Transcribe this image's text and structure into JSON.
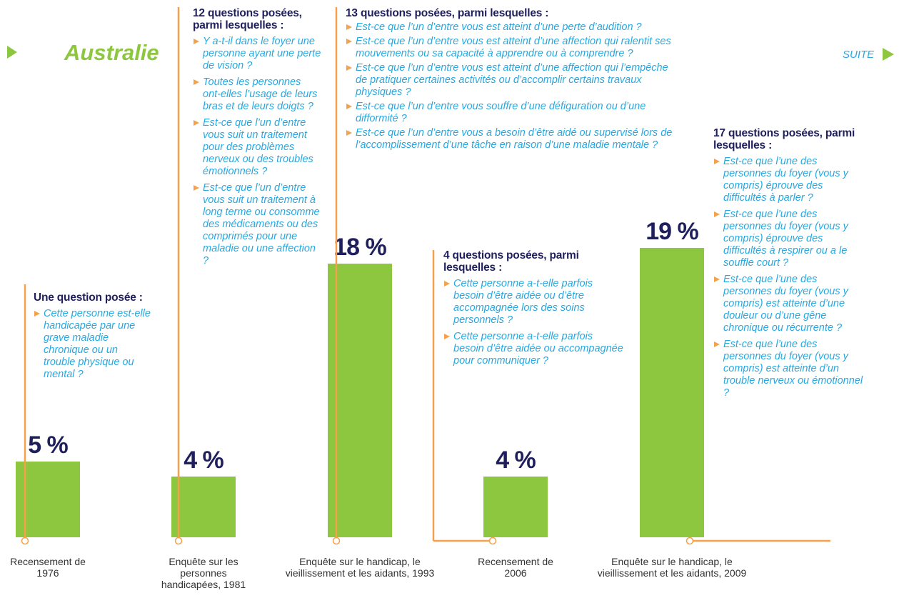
{
  "chart_data": {
    "type": "bar",
    "title": "Australie",
    "subtitle": "SUITE",
    "color": "#8dc63f",
    "categories": [
      "Recensement de 1976",
      "Enquête sur les personnes handicapées, 1981",
      "Enquête sur le handicap, le vieillissement et les aidants, 1993",
      "Recensement de 2006",
      "Enquête sur le handicap, le vieillissement et les aidants, 2009"
    ],
    "values": [
      5,
      4,
      18,
      4,
      19
    ],
    "value_labels": [
      "5 %",
      "4 %",
      "18 %",
      "4 %",
      "19 %"
    ],
    "annotations": [
      {
        "heading": "Une question posée :",
        "items": [
          "Cette personne est-elle handicapée par une grave maladie chronique ou un trouble physique ou mental ?"
        ]
      },
      {
        "heading": "12 questions posées, parmi lesquelles :",
        "items": [
          "Y a-t-il dans le foyer une personne ayant une perte de vision ?",
          "Toutes les personnes ont-elles l’usage de leurs bras et de leurs doigts ?",
          "Est-ce que l’un d’entre vous suit un traitement pour des problèmes nerveux ou des troubles émotionnels ?",
          "Est-ce que l’un d’entre vous suit un traitement à long terme ou consomme des médicaments ou des comprimés pour une maladie ou une affection ?"
        ]
      },
      {
        "heading": "13 questions posées, parmi lesquelles :",
        "items": [
          "Est-ce que l’un d’entre vous est atteint d’une perte d’audition ?",
          "Est-ce que l’un d’entre vous est atteint d’une affection qui ralentit ses mouvements ou sa capacité à apprendre ou à comprendre ?",
          "Est-ce que l’un d’entre vous est atteint d’une affection qui l’empêche de pratiquer certaines activités ou d’accomplir certains travaux physiques ?",
          "Est-ce que l’un d’entre vous souffre d’une défiguration ou d’une difformité ?",
          "Est-ce que l’un d’entre vous a besoin d’être aidé ou supervisé lors de l’accomplissement d’une tâche en raison d’une maladie mentale ?"
        ]
      },
      {
        "heading": "4 questions posées, parmi lesquelles :",
        "items": [
          "Cette personne a-t-elle parfois besoin d’être aidée ou d’être accompagnée lors des soins personnels ?",
          "Cette personne a-t-elle parfois besoin d’être aidée ou accompagnée pour communiquer ?"
        ]
      },
      {
        "heading": "17 questions posées, parmi lesquelles :",
        "items": [
          "Est-ce que l’une des personnes du foyer (vous y compris) éprouve des difficultés à parler ?",
          "Est-ce que l’une des personnes du foyer (vous y compris) éprouve des difficultés à respirer ou a le souffle court ?",
          "Est-ce que l’une des personnes du foyer (vous y compris) est atteinte d’une douleur ou d’une gêne chronique ou récurrente ?",
          "Est-ce que l’une des personnes du foyer (vous y compris) est atteinte d’un trouble nerveux ou émotionnel ?"
        ]
      }
    ]
  }
}
